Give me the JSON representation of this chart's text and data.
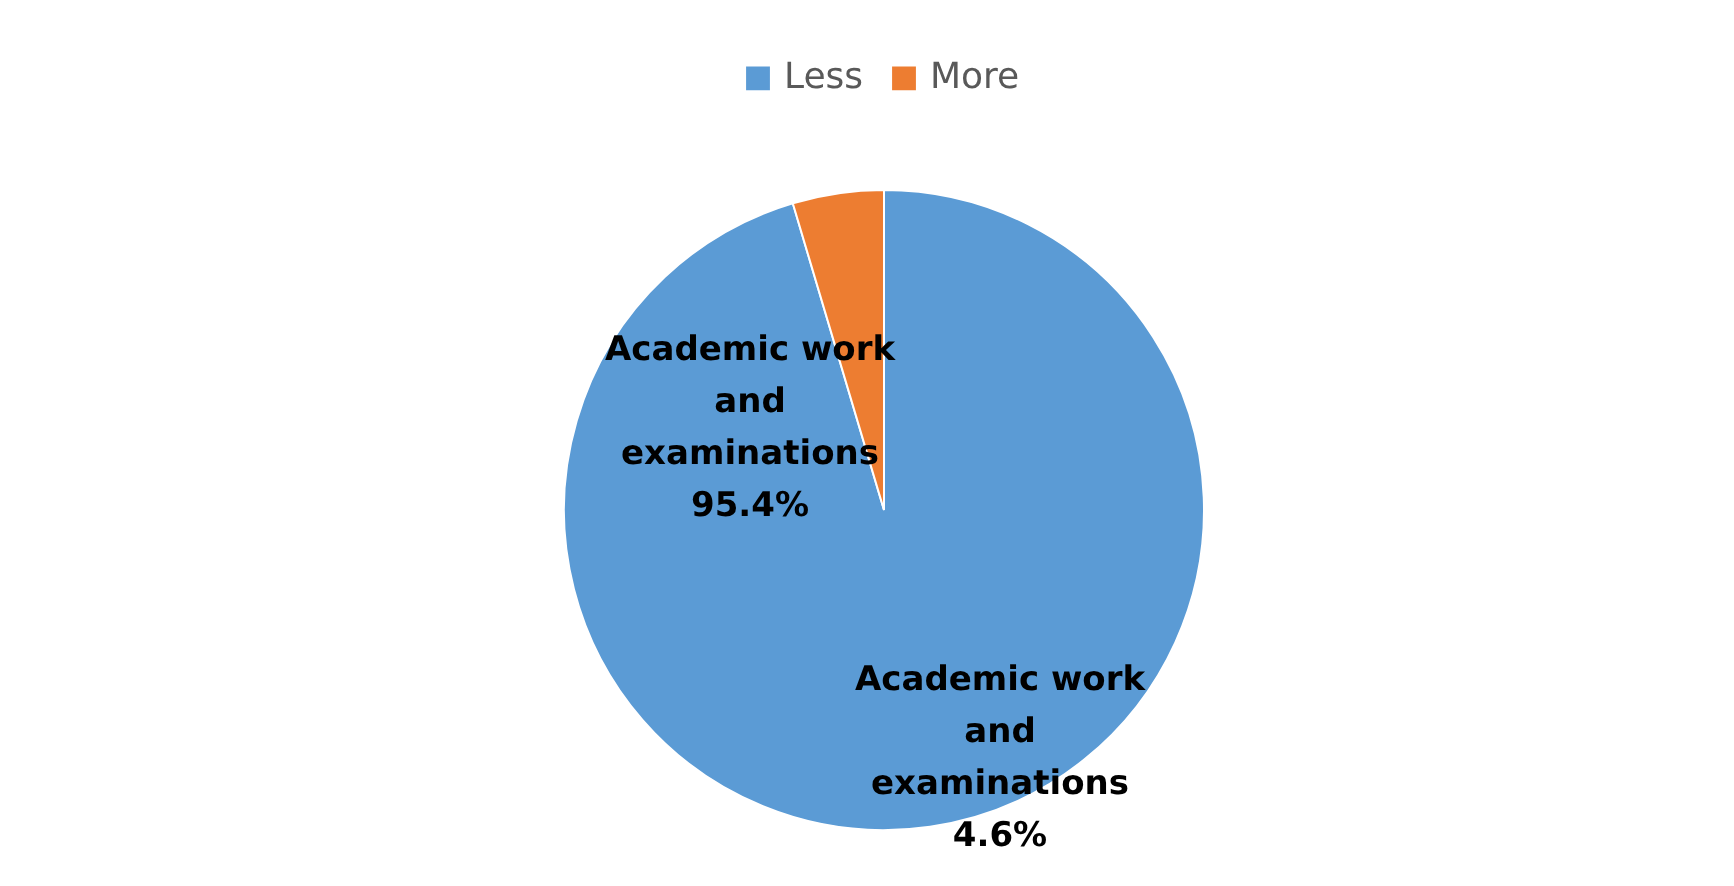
{
  "chart_data": {
    "type": "pie",
    "categories": [
      "Less",
      "More"
    ],
    "values": [
      95.4,
      4.6
    ],
    "colors": [
      "#5b9bd5",
      "#ed7d31"
    ],
    "legend": "top",
    "annotations": [
      "Academic work\nand\nexaminations\n95.4%",
      "Academic work\nand\nexaminations\n4.6%"
    ]
  }
}
